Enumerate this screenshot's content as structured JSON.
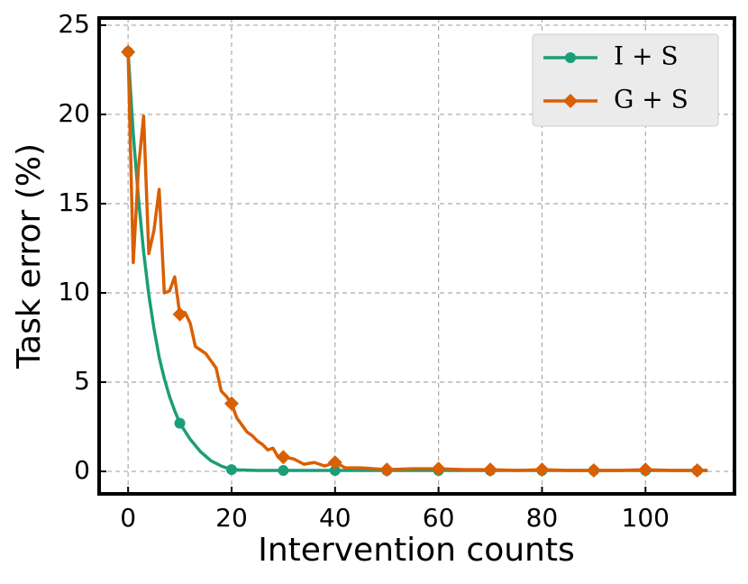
{
  "chart_data": {
    "type": "line",
    "xlabel": "Intervention counts",
    "ylabel": "Task error (%)",
    "xlim": [
      -5.6,
      117.2
    ],
    "ylim": [
      -1.26,
      25.4
    ],
    "xticks": [
      0,
      20,
      40,
      60,
      80,
      100
    ],
    "yticks": [
      0,
      5,
      10,
      15,
      20,
      25
    ],
    "grid": true,
    "legend": "upper right",
    "series": [
      {
        "name": "I + S",
        "color": "#1b9e77",
        "marker": "circle",
        "x": [
          0,
          1,
          2,
          3,
          4,
          5,
          6,
          7,
          8,
          9,
          10,
          12,
          14,
          16,
          18,
          20,
          25,
          30,
          35,
          40,
          50,
          60,
          70,
          80,
          90,
          100,
          110,
          112
        ],
        "values": [
          23.5,
          18.9,
          15.3,
          12.3,
          9.9,
          8.0,
          6.4,
          5.2,
          4.2,
          3.4,
          2.7,
          1.8,
          1.1,
          0.6,
          0.3,
          0.1,
          0.05,
          0.05,
          0.05,
          0.05,
          0.05,
          0.05,
          0.05,
          0.05,
          0.05,
          0.05,
          0.05,
          0.05
        ]
      },
      {
        "name": "G + S",
        "color": "#d95f02",
        "marker": "diamond",
        "x": [
          0,
          1,
          2,
          3,
          4,
          5,
          6,
          7,
          8,
          9,
          10,
          11,
          12,
          13,
          14,
          15,
          16,
          17,
          18,
          19,
          20,
          21,
          22,
          23,
          24,
          25,
          26,
          27,
          28,
          29,
          30,
          32,
          34,
          36,
          38,
          40,
          42,
          45,
          50,
          55,
          60,
          65,
          70,
          75,
          80,
          85,
          90,
          95,
          100,
          105,
          110,
          112
        ],
        "values": [
          23.5,
          11.7,
          17,
          19.9,
          12.2,
          13.5,
          15.8,
          10,
          10.1,
          10.9,
          8.8,
          8.9,
          8.3,
          7.0,
          6.8,
          6.6,
          6.2,
          5.8,
          4.5,
          4.2,
          3.8,
          3.0,
          2.6,
          2.2,
          2.0,
          1.7,
          1.5,
          1.2,
          1.3,
          0.8,
          0.8,
          0.7,
          0.4,
          0.5,
          0.3,
          0.5,
          0.2,
          0.2,
          0.1,
          0.15,
          0.15,
          0.1,
          0.1,
          0.05,
          0.1,
          0.05,
          0.05,
          0.05,
          0.1,
          0.05,
          0.05,
          0.05
        ]
      }
    ]
  }
}
